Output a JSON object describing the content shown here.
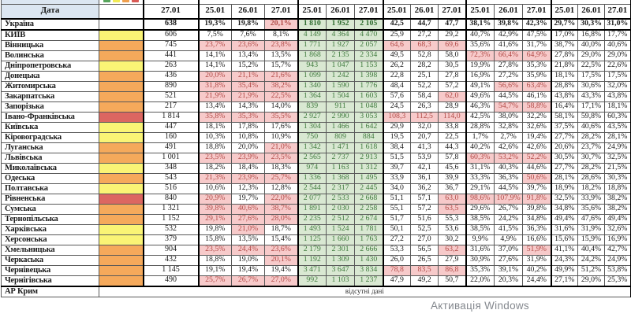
{
  "table": {
    "corner_label": "Дата",
    "legend_colors": [
      "#58a55c",
      "#f1ea54",
      "#ef9f4d",
      "#d95a55"
    ],
    "date_headers": [
      "27.01",
      "25.01",
      "26.01",
      "27.01",
      "25.01",
      "26.01",
      "27.01",
      "25.01",
      "26.01",
      "27.01",
      "25.01",
      "26.01",
      "27.01",
      "25.01",
      "26.01",
      "27.01"
    ],
    "rows": [
      {
        "name": "Україна",
        "swatch": "none",
        "bold": true,
        "abs": "638",
        "pct1": [
          "19,3%",
          "19,8%",
          "20,1%"
        ],
        "pct1_hl": [
          0,
          0,
          1
        ],
        "green": [
          "1 810",
          "1 952",
          "2 105"
        ],
        "dec": [
          "42,5",
          "44,7",
          "47,7"
        ],
        "pctA": [
          "38,1%",
          "39,8%",
          "42,3%"
        ],
        "pctB": [
          "29,7%",
          "30,3%",
          "31,0%"
        ]
      },
      {
        "name": "КИЇВ",
        "swatch": "yellow",
        "abs": "606",
        "pct1": [
          "7,5%",
          "7,6%",
          "8,1%"
        ],
        "green": [
          "4 149",
          "4 364",
          "4 470"
        ],
        "dec": [
          "25,9",
          "27,2",
          "29,2"
        ],
        "pctA": [
          "40,7%",
          "42,9%",
          "47,5%"
        ],
        "pctB": [
          "17,0%",
          "16,8%",
          "17,7%"
        ]
      },
      {
        "name": "Вінницька",
        "swatch": "orange",
        "abs": "745",
        "pct1": [
          "23,7%",
          "23,6%",
          "23,8%"
        ],
        "pct1_hl": [
          1,
          1,
          1
        ],
        "green": [
          "1 771",
          "1 927",
          "2 057"
        ],
        "dec": [
          "64,6",
          "68,3",
          "69,6"
        ],
        "dec_hl": [
          1,
          1,
          1
        ],
        "pctA": [
          "35,6%",
          "41,6%",
          "31,7%"
        ],
        "pctB": [
          "38,7%",
          "40,0%",
          "40,6%"
        ]
      },
      {
        "name": "Волинська",
        "swatch": "orange",
        "abs": "441",
        "pct1": [
          "14,1%",
          "13,4%",
          "13,5%"
        ],
        "green": [
          "1 868",
          "2 135",
          "2 334"
        ],
        "dec": [
          "49,5",
          "52,8",
          "58,0"
        ],
        "pctA": [
          "72,3%",
          "66,4%",
          "64,9%"
        ],
        "pctA_hl": [
          1,
          1,
          1
        ],
        "pctB": [
          "27,8%",
          "29,0%",
          "29,0%"
        ]
      },
      {
        "name": "Дніпропетровська",
        "swatch": "yellow",
        "abs": "263",
        "pct1": [
          "14,1%",
          "15,2%",
          "15,7%"
        ],
        "green": [
          "943",
          "1 047",
          "1 153"
        ],
        "dec": [
          "26,2",
          "28,2",
          "30,5"
        ],
        "pctA": [
          "19,9%",
          "27,8%",
          "35,3%"
        ],
        "pctB": [
          "21,8%",
          "22,5%",
          "22,6%"
        ]
      },
      {
        "name": "Донецька",
        "swatch": "orange",
        "abs": "436",
        "pct1": [
          "20,0%",
          "21,1%",
          "21,6%"
        ],
        "pct1_hl": [
          1,
          1,
          1
        ],
        "green": [
          "1 099",
          "1 242",
          "1 398"
        ],
        "dec": [
          "22,8",
          "25,1",
          "27,8"
        ],
        "pctA": [
          "16,9%",
          "27,2%",
          "35,9%"
        ],
        "pctB": [
          "18,1%",
          "17,5%",
          "17,5%"
        ]
      },
      {
        "name": "Житомирська",
        "swatch": "orange",
        "abs": "890",
        "pct1": [
          "31,8%",
          "35,4%",
          "38,2%"
        ],
        "pct1_hl": [
          1,
          1,
          1
        ],
        "green": [
          "1 340",
          "1 590",
          "1 776"
        ],
        "dec": [
          "48,4",
          "52,2",
          "57,2"
        ],
        "pctA": [
          "49,1%",
          "56,6%",
          "63,4%"
        ],
        "pctA_hl": [
          0,
          1,
          1
        ],
        "pctB": [
          "28,8%",
          "30,6%",
          "32,0%"
        ]
      },
      {
        "name": "Закарпатська",
        "swatch": "orange",
        "abs": "521",
        "pct1": [
          "21,9%",
          "21,9%",
          "22,5%"
        ],
        "pct1_hl": [
          1,
          1,
          1
        ],
        "green": [
          "1 364",
          "1 504",
          "1 603"
        ],
        "dec": [
          "57,6",
          "58,4",
          "62,0"
        ],
        "dec_hl": [
          0,
          0,
          1
        ],
        "pctA": [
          "49,6%",
          "44,5%",
          "46,1%"
        ],
        "pctB": [
          "43,8%",
          "43,3%",
          "43,8%"
        ]
      },
      {
        "name": "Запорізька",
        "swatch": "orange",
        "abs": "217",
        "pct1": [
          "13,4%",
          "14,3%",
          "14,0%"
        ],
        "green": [
          "839",
          "911",
          "1 048"
        ],
        "dec": [
          "24,5",
          "26,3",
          "28,9"
        ],
        "pctA": [
          "46,3%",
          "54,7%",
          "58,8%"
        ],
        "pctA_hl": [
          0,
          1,
          1
        ],
        "pctB": [
          "16,4%",
          "17,1%",
          "18,1%"
        ]
      },
      {
        "name": "Івано-Франківська",
        "swatch": "red",
        "abs": "1 814",
        "pct1": [
          "35,8%",
          "35,3%",
          "35,5%"
        ],
        "pct1_hl": [
          1,
          1,
          1
        ],
        "green": [
          "2 927",
          "2 990",
          "3 053"
        ],
        "dec": [
          "108,3",
          "112,5",
          "114,0"
        ],
        "dec_hl": [
          1,
          1,
          1
        ],
        "pctA": [
          "42,5%",
          "38,0%",
          "32,2%"
        ],
        "pctB": [
          "58,1%",
          "59,8%",
          "60,3%"
        ]
      },
      {
        "name": "Київська",
        "swatch": "yellow",
        "abs": "447",
        "pct1": [
          "18,1%",
          "17,8%",
          "17,6%"
        ],
        "green": [
          "1 304",
          "1 466",
          "1 642"
        ],
        "dec": [
          "29,9",
          "32,0",
          "33,8"
        ],
        "pctA": [
          "28,8%",
          "32,8%",
          "32,6%"
        ],
        "pctB": [
          "37,5%",
          "40,6%",
          "43,5%"
        ]
      },
      {
        "name": "Кіровоградська",
        "swatch": "yellow",
        "abs": "160",
        "pct1": [
          "10,3%",
          "10,8%",
          "10,9%"
        ],
        "green": [
          "750",
          "809",
          "884"
        ],
        "dec": [
          "19,5",
          "20,7",
          "22,5"
        ],
        "pctA": [
          "1,7%",
          "2,7%",
          "19,4%"
        ],
        "pctB": [
          "27,7%",
          "28,2%",
          "28,1%"
        ]
      },
      {
        "name": "Луганська",
        "swatch": "orange",
        "abs": "491",
        "pct1": [
          "18,8%",
          "20,0%",
          "21,0%"
        ],
        "pct1_hl": [
          0,
          0,
          1
        ],
        "green": [
          "1 342",
          "1 471",
          "1 618"
        ],
        "dec": [
          "38,4",
          "41,3",
          "44,3"
        ],
        "pctA": [
          "40,2%",
          "42,6%",
          "42,6%"
        ],
        "pctB": [
          "20,6%",
          "23,7%",
          "24,9%"
        ]
      },
      {
        "name": "Львівська",
        "swatch": "orange",
        "abs": "1 001",
        "pct1": [
          "23,5%",
          "23,9%",
          "23,5%"
        ],
        "pct1_hl": [
          1,
          1,
          1
        ],
        "green": [
          "2 565",
          "2 737",
          "2 913"
        ],
        "dec": [
          "51,5",
          "53,9",
          "57,8"
        ],
        "pctA": [
          "60,3%",
          "53,2%",
          "52,2%"
        ],
        "pctA_hl": [
          1,
          1,
          1
        ],
        "pctB": [
          "30,5%",
          "30,7%",
          "32,5%"
        ]
      },
      {
        "name": "Миколаївська",
        "swatch": "yellow",
        "abs": "348",
        "pct1": [
          "18,2%",
          "18,4%",
          "18,3%"
        ],
        "green": [
          "974",
          "1 163",
          "1 312"
        ],
        "dec": [
          "39,7",
          "42,1",
          "45,6"
        ],
        "pctA": [
          "31,1%",
          "40,3%",
          "44,6%"
        ],
        "pctB": [
          "27,7%",
          "28,2%",
          "21,5%"
        ]
      },
      {
        "name": "Одеська",
        "swatch": "orange",
        "abs": "543",
        "pct1": [
          "21,3%",
          "23,9%",
          "25,7%"
        ],
        "pct1_hl": [
          1,
          1,
          1
        ],
        "green": [
          "1 336",
          "1 368",
          "1 495"
        ],
        "dec": [
          "33,9",
          "36,1",
          "39,9"
        ],
        "pctA": [
          "33,3%",
          "36,3%",
          "50,6%"
        ],
        "pctA_hl": [
          0,
          0,
          1
        ],
        "pctB": [
          "28,1%",
          "28,6%",
          "30,3%"
        ]
      },
      {
        "name": "Полтавська",
        "swatch": "yellow",
        "abs": "516",
        "pct1": [
          "10,6%",
          "12,3%",
          "12,8%"
        ],
        "green": [
          "2 544",
          "2 317",
          "2 445"
        ],
        "dec": [
          "34,0",
          "36,2",
          "36,7"
        ],
        "pctA": [
          "29,1%",
          "44,5%",
          "39,7%"
        ],
        "pctB": [
          "18,9%",
          "18,2%",
          "18,8%"
        ]
      },
      {
        "name": "Рівненська",
        "swatch": "red",
        "abs": "840",
        "pct1": [
          "20,9%",
          "19,7%",
          "22,0%"
        ],
        "pct1_hl": [
          1,
          0,
          1
        ],
        "green": [
          "2 077",
          "2 533",
          "2 668"
        ],
        "dec": [
          "51,1",
          "57,1",
          "63,0"
        ],
        "dec_hl": [
          0,
          0,
          1
        ],
        "pctA": [
          "98,6%",
          "107,9%",
          "91,8%"
        ],
        "pctA_hl": [
          1,
          1,
          1
        ],
        "pctB": [
          "32,5%",
          "33,9%",
          "38,2%"
        ]
      },
      {
        "name": "Сумська",
        "swatch": "orange",
        "abs": "1 321",
        "pct1": [
          "39,8%",
          "40,6%",
          "38,7%"
        ],
        "pct1_hl": [
          1,
          1,
          1
        ],
        "green": [
          "1 891",
          "2 030",
          "2 258"
        ],
        "dec": [
          "55,1",
          "57,2",
          "63,5"
        ],
        "dec_hl": [
          0,
          0,
          1
        ],
        "pctA": [
          "29,6%",
          "26,7%",
          "39,8%"
        ],
        "pctB": [
          "34,8%",
          "35,6%",
          "38,2%"
        ]
      },
      {
        "name": "Тернопільська",
        "swatch": "orange",
        "abs": "1 152",
        "pct1": [
          "29,1%",
          "27,6%",
          "28,0%"
        ],
        "pct1_hl": [
          1,
          1,
          1
        ],
        "green": [
          "2 235",
          "2 512",
          "2 674"
        ],
        "dec": [
          "51,7",
          "51,6",
          "55,3"
        ],
        "pctA": [
          "38,5%",
          "24,2%",
          "34,8%"
        ],
        "pctB": [
          "49,4%",
          "47,6%",
          "49,4%"
        ]
      },
      {
        "name": "Харківська",
        "swatch": "yellow",
        "abs": "532",
        "pct1": [
          "19,8%",
          "21,0%",
          "18,7%"
        ],
        "pct1_hl": [
          0,
          1,
          0
        ],
        "green": [
          "1 493",
          "1 524",
          "1 781"
        ],
        "dec": [
          "50,1",
          "52,5",
          "53,6"
        ],
        "pctA": [
          "38,5%",
          "41,5%",
          "36,3%"
        ],
        "pctB": [
          "31,6%",
          "31,9%",
          "32,6%"
        ]
      },
      {
        "name": "Херсонська",
        "swatch": "yellow",
        "abs": "379",
        "pct1": [
          "15,8%",
          "13,5%",
          "15,4%"
        ],
        "green": [
          "1 125",
          "1 660",
          "1 763"
        ],
        "dec": [
          "27,2",
          "27,0",
          "30,2"
        ],
        "pctA": [
          "9,9%",
          "4,9%",
          "16,6%"
        ],
        "pctB": [
          "15,6%",
          "15,9%",
          "16,9%"
        ]
      },
      {
        "name": "Хмельницька",
        "swatch": "orange",
        "abs": "904",
        "pct1": [
          "23,5%",
          "24,4%",
          "23,6%"
        ],
        "pct1_hl": [
          1,
          1,
          1
        ],
        "green": [
          "2 179",
          "2 301",
          "2 666"
        ],
        "dec": [
          "53,3",
          "56,5",
          "63,2"
        ],
        "dec_hl": [
          0,
          0,
          1
        ],
        "pctA": [
          "31,6%",
          "37,0%",
          "51,9%"
        ],
        "pctA_hl": [
          0,
          0,
          1
        ],
        "pctB": [
          "41,1%",
          "40,4%",
          "42,7%"
        ]
      },
      {
        "name": "Черкаська",
        "swatch": "orange",
        "abs": "432",
        "pct1": [
          "18,8%",
          "19,0%",
          "20,1%"
        ],
        "pct1_hl": [
          0,
          0,
          1
        ],
        "green": [
          "1 192",
          "1 309",
          "1 430"
        ],
        "dec": [
          "26,0",
          "26,5",
          "27,9"
        ],
        "pctA": [
          "30,9%",
          "27,6%",
          "31,9%"
        ],
        "pctB": [
          "24,3%",
          "24,2%",
          "24,9%"
        ]
      },
      {
        "name": "Чернівецька",
        "swatch": "orange",
        "abs": "1 145",
        "pct1": [
          "19,1%",
          "19,4%",
          "19,4%"
        ],
        "green": [
          "3 471",
          "3 647",
          "3 834"
        ],
        "dec": [
          "78,8",
          "83,5",
          "86,8"
        ],
        "dec_hl": [
          1,
          1,
          1
        ],
        "pctA": [
          "35,3%",
          "39,1%",
          "40,2%"
        ],
        "pctB": [
          "49,9%",
          "51,2%",
          "53,8%"
        ]
      },
      {
        "name": "Чернігівська",
        "swatch": "orange",
        "abs": "490",
        "pct1": [
          "25,7%",
          "26,7%",
          "27,0%"
        ],
        "pct1_hl": [
          1,
          1,
          1
        ],
        "green": [
          "992",
          "1 103",
          "1 237"
        ],
        "dec": [
          "47,9",
          "49,2",
          "50,7"
        ],
        "pctA": [
          "22,0%",
          "20,3%",
          "24,4%"
        ],
        "pctB": [
          "27,1%",
          "29,0%",
          "25,3%"
        ]
      }
    ],
    "footer_row": {
      "name": "АР Крим",
      "note": "відсутні дані"
    }
  },
  "watermark": {
    "text": "Активація Windows"
  }
}
